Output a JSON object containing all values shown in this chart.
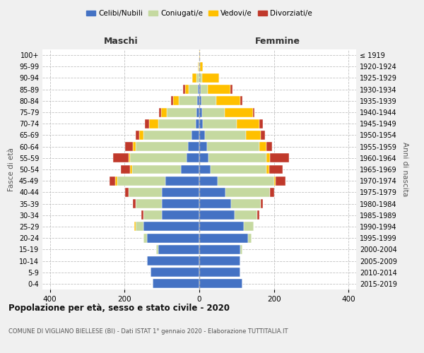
{
  "age_groups": [
    "0-4",
    "5-9",
    "10-14",
    "15-19",
    "20-24",
    "25-29",
    "30-34",
    "35-39",
    "40-44",
    "45-49",
    "50-54",
    "55-59",
    "60-64",
    "65-69",
    "70-74",
    "75-79",
    "80-84",
    "85-89",
    "90-94",
    "95-99",
    "100+"
  ],
  "birth_years": [
    "2015-2019",
    "2010-2014",
    "2005-2009",
    "2000-2004",
    "1995-1999",
    "1990-1994",
    "1985-1989",
    "1980-1984",
    "1975-1979",
    "1970-1974",
    "1965-1969",
    "1960-1964",
    "1955-1959",
    "1950-1954",
    "1945-1949",
    "1940-1944",
    "1935-1939",
    "1930-1934",
    "1925-1929",
    "1920-1924",
    "≤ 1919"
  ],
  "maschi": {
    "celibi": [
      125,
      130,
      140,
      110,
      140,
      150,
      100,
      100,
      100,
      90,
      50,
      35,
      30,
      20,
      10,
      7,
      5,
      3,
      0,
      0,
      0
    ],
    "coniugati": [
      0,
      0,
      0,
      5,
      10,
      20,
      50,
      70,
      90,
      130,
      130,
      150,
      140,
      130,
      100,
      80,
      50,
      25,
      8,
      2,
      0
    ],
    "vedovi": [
      0,
      0,
      0,
      0,
      0,
      5,
      0,
      0,
      0,
      5,
      5,
      5,
      8,
      10,
      25,
      15,
      15,
      10,
      10,
      2,
      0
    ],
    "divorziati": [
      0,
      0,
      0,
      0,
      0,
      0,
      5,
      8,
      8,
      15,
      25,
      40,
      20,
      10,
      10,
      5,
      5,
      5,
      0,
      0,
      0
    ]
  },
  "femmine": {
    "nubili": [
      115,
      110,
      110,
      110,
      130,
      120,
      95,
      85,
      70,
      50,
      30,
      25,
      20,
      15,
      10,
      8,
      5,
      3,
      0,
      0,
      0
    ],
    "coniugate": [
      0,
      0,
      0,
      5,
      10,
      25,
      60,
      80,
      120,
      150,
      150,
      155,
      140,
      110,
      90,
      60,
      40,
      20,
      8,
      2,
      0
    ],
    "vedove": [
      0,
      0,
      0,
      0,
      0,
      0,
      0,
      0,
      0,
      5,
      8,
      10,
      20,
      40,
      60,
      75,
      65,
      60,
      45,
      8,
      2
    ],
    "divorziate": [
      0,
      0,
      0,
      0,
      0,
      0,
      5,
      5,
      10,
      25,
      35,
      50,
      15,
      10,
      10,
      5,
      5,
      5,
      0,
      0,
      0
    ]
  },
  "colors": {
    "celibi": "#4472c4",
    "coniugati": "#c5d9a0",
    "vedovi": "#ffc000",
    "divorziati": "#c0392b"
  },
  "xlim": 420,
  "title": "Popolazione per età, sesso e stato civile - 2020",
  "subtitle": "COMUNE DI VIGLIANO BIELLESE (BI) - Dati ISTAT 1° gennaio 2020 - Elaborazione TUTTITALIA.IT",
  "ylabel_left": "Fasce di età",
  "ylabel_right": "Anni di nascita",
  "xlabel_left": "Maschi",
  "xlabel_right": "Femmine",
  "bg_color": "#f0f0f0",
  "plot_bg_color": "#ffffff"
}
